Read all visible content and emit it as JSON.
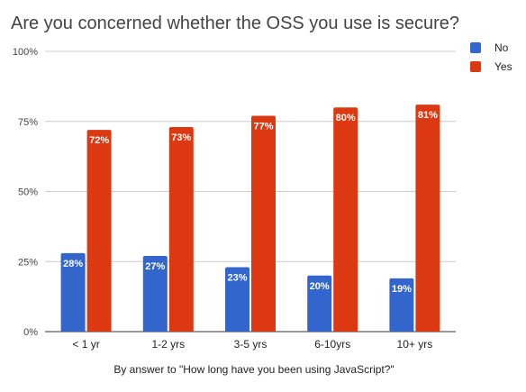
{
  "chart_data": {
    "type": "bar",
    "title": "Are you concerned whether the OSS you use is secure?",
    "xlabel": "By answer to \"How long have you been using JavaScript?\"",
    "ylabel": "",
    "categories": [
      "< 1 yr",
      "1-2 yrs",
      "3-5 yrs",
      "6-10yrs",
      "10+ yrs"
    ],
    "series": [
      {
        "name": "No",
        "color": "#3366cc",
        "values": [
          28,
          27,
          23,
          20,
          19
        ],
        "labels": [
          "28%",
          "27%",
          "23%",
          "20%",
          "19%"
        ]
      },
      {
        "name": "Yes",
        "color": "#dc3912",
        "values": [
          72,
          73,
          77,
          80,
          81
        ],
        "labels": [
          "72%",
          "73%",
          "77%",
          "80%",
          "81%"
        ]
      }
    ],
    "ylim": [
      0,
      100
    ],
    "yticks": [
      {
        "value": 0,
        "label": "0%"
      },
      {
        "value": 25,
        "label": "25%"
      },
      {
        "value": 50,
        "label": "50%"
      },
      {
        "value": 75,
        "label": "75%"
      },
      {
        "value": 100,
        "label": "100%"
      }
    ],
    "grid": true,
    "legend_position": "right"
  }
}
